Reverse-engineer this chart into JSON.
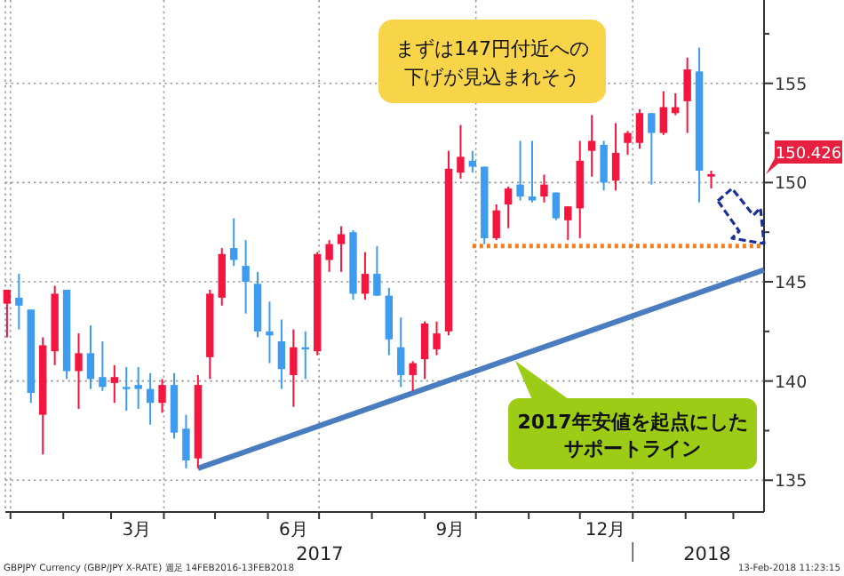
{
  "chart_data": {
    "type": "candlestick",
    "x": [
      "2016-12-30",
      "2017-01-06",
      "2017-01-13",
      "2017-01-20",
      "2017-01-27",
      "2017-02-03",
      "2017-02-10",
      "2017-02-17",
      "2017-02-24",
      "2017-03-03",
      "2017-03-10",
      "2017-03-17",
      "2017-03-24",
      "2017-03-31",
      "2017-04-07",
      "2017-04-14",
      "2017-04-21",
      "2017-04-28",
      "2017-05-05",
      "2017-05-12",
      "2017-05-19",
      "2017-05-26",
      "2017-06-02",
      "2017-06-09",
      "2017-06-16",
      "2017-06-23",
      "2017-06-30",
      "2017-07-07",
      "2017-07-14",
      "2017-07-21",
      "2017-07-28",
      "2017-08-04",
      "2017-08-11",
      "2017-08-18",
      "2017-08-25",
      "2017-09-01",
      "2017-09-08",
      "2017-09-15",
      "2017-09-22",
      "2017-09-29",
      "2017-10-06",
      "2017-10-13",
      "2017-10-20",
      "2017-10-27",
      "2017-11-03",
      "2017-11-10",
      "2017-11-17",
      "2017-11-24",
      "2017-12-01",
      "2017-12-08",
      "2017-12-15",
      "2017-12-22",
      "2017-12-29",
      "2018-01-05",
      "2018-01-12",
      "2018-01-19",
      "2018-01-26",
      "2018-02-02",
      "2018-02-09",
      "2018-02-16"
    ],
    "ohlc": [
      [
        143.9,
        144.6,
        142.2,
        144.6
      ],
      [
        144.2,
        145.4,
        142.6,
        143.8
      ],
      [
        143.6,
        143.6,
        138.9,
        139.4
      ],
      [
        138.3,
        142.2,
        136.3,
        141.8
      ],
      [
        141.5,
        144.8,
        140.8,
        144.4
      ],
      [
        144.6,
        144.6,
        140.1,
        140.5
      ],
      [
        140.5,
        142.4,
        138.6,
        141.4
      ],
      [
        141.4,
        142.8,
        139.6,
        140.1
      ],
      [
        140.2,
        142.0,
        139.5,
        139.7
      ],
      [
        139.9,
        140.8,
        138.9,
        140.2
      ],
      [
        139.7,
        140.7,
        138.5,
        139.6
      ],
      [
        139.8,
        140.7,
        138.6,
        139.6
      ],
      [
        139.6,
        140.4,
        137.8,
        138.9
      ],
      [
        138.9,
        140.1,
        138.4,
        139.8
      ],
      [
        139.8,
        140.4,
        137.1,
        137.4
      ],
      [
        137.6,
        138.3,
        135.6,
        136.0
      ],
      [
        136.1,
        140.3,
        135.6,
        139.8
      ],
      [
        141.2,
        144.6,
        140.1,
        144.4
      ],
      [
        144.2,
        146.7,
        143.8,
        146.4
      ],
      [
        146.7,
        148.2,
        145.8,
        146.1
      ],
      [
        145.8,
        147.1,
        143.4,
        145.0
      ],
      [
        144.9,
        145.5,
        142.2,
        142.5
      ],
      [
        142.5,
        144.0,
        140.9,
        142.3
      ],
      [
        142.0,
        143.1,
        139.6,
        140.6
      ],
      [
        140.3,
        142.6,
        138.7,
        141.7
      ],
      [
        141.7,
        142.5,
        140.1,
        141.6
      ],
      [
        141.5,
        146.5,
        141.3,
        146.4
      ],
      [
        146.1,
        147.1,
        145.5,
        146.9
      ],
      [
        146.9,
        147.8,
        145.5,
        147.4
      ],
      [
        147.5,
        147.6,
        144.1,
        144.4
      ],
      [
        144.4,
        146.5,
        144.1,
        145.4
      ],
      [
        145.4,
        146.8,
        144.3,
        144.3
      ],
      [
        144.3,
        144.7,
        141.3,
        142.1
      ],
      [
        141.7,
        143.2,
        139.7,
        140.3
      ],
      [
        140.3,
        141.0,
        139.5,
        140.9
      ],
      [
        141.1,
        143.0,
        140.1,
        142.9
      ],
      [
        141.6,
        143.0,
        141.3,
        142.4
      ],
      [
        142.5,
        151.6,
        142.3,
        150.7
      ],
      [
        150.5,
        152.9,
        150.2,
        151.3
      ],
      [
        151.1,
        151.6,
        150.5,
        150.8
      ],
      [
        150.8,
        150.8,
        146.9,
        147.2
      ],
      [
        147.2,
        148.9,
        147.1,
        148.6
      ],
      [
        148.9,
        149.8,
        147.7,
        149.7
      ],
      [
        149.9,
        152.1,
        149.1,
        149.3
      ],
      [
        149.3,
        152.1,
        149.0,
        149.1
      ],
      [
        149.3,
        150.4,
        149.0,
        149.9
      ],
      [
        149.5,
        149.5,
        148.1,
        148.2
      ],
      [
        148.1,
        148.8,
        147.1,
        148.8
      ],
      [
        148.7,
        152.1,
        147.2,
        151.1
      ],
      [
        151.6,
        153.4,
        150.3,
        152.1
      ],
      [
        151.9,
        152.1,
        149.6,
        150.0
      ],
      [
        150.1,
        153.0,
        149.6,
        151.5
      ],
      [
        152.0,
        152.6,
        151.4,
        152.5
      ],
      [
        152.0,
        153.7,
        151.7,
        153.5
      ],
      [
        153.5,
        153.5,
        149.9,
        152.5
      ],
      [
        152.5,
        154.6,
        152.4,
        153.8
      ],
      [
        153.5,
        154.5,
        153.4,
        153.8
      ],
      [
        154.1,
        156.3,
        152.5,
        155.7
      ],
      [
        155.6,
        156.8,
        149.0,
        150.6
      ],
      [
        150.3,
        150.6,
        149.7,
        150.426
      ]
    ],
    "colors": [
      "#f5163f",
      "#3d9cf0",
      "#3d9cf0",
      "#f5163f",
      "#f5163f",
      "#3d9cf0",
      "#f5163f",
      "#3d9cf0",
      "#3d9cf0",
      "#f5163f",
      "#3d9cf0",
      "#3d9cf0",
      "#3d9cf0",
      "#f5163f",
      "#3d9cf0",
      "#3d9cf0",
      "#f5163f",
      "#f5163f",
      "#f5163f",
      "#3d9cf0",
      "#3d9cf0",
      "#3d9cf0",
      "#3d9cf0",
      "#3d9cf0",
      "#f5163f",
      "#3d9cf0",
      "#f5163f",
      "#f5163f",
      "#f5163f",
      "#3d9cf0",
      "#f5163f",
      "#3d9cf0",
      "#3d9cf0",
      "#3d9cf0",
      "#f5163f",
      "#f5163f",
      "#f5163f",
      "#f5163f",
      "#f5163f",
      "#3d9cf0",
      "#3d9cf0",
      "#f5163f",
      "#f5163f",
      "#3d9cf0",
      "#3d9cf0",
      "#f5163f",
      "#3d9cf0",
      "#f5163f",
      "#f5163f",
      "#f5163f",
      "#3d9cf0",
      "#f5163f",
      "#f5163f",
      "#f5163f",
      "#3d9cf0",
      "#f5163f",
      "#f5163f",
      "#f5163f",
      "#3d9cf0",
      "#f5163f"
    ],
    "series": [
      {
        "type": "line",
        "color": "#4a7cc0",
        "x": [
          "2017-04-21",
          "2018-03-19"
        ],
        "values": [
          135.6,
          145.6
        ]
      },
      {
        "type": "line",
        "color": "#f07d1e",
        "line_style": "dotted",
        "x": [
          "2017-09-29",
          "2018-03-19"
        ],
        "values": [
          146.8,
          146.8
        ]
      }
    ],
    "xlim": [
      "2016-12-29",
      "2018-03-19"
    ],
    "xticks": [
      {
        "value": "2017-01-01",
        "label": null
      },
      {
        "value": "2017-02-01",
        "label": null
      },
      {
        "value": "2017-03-01",
        "label": null
      },
      {
        "value": "2017-03-16",
        "label": "3月"
      },
      {
        "value": "2017-04-01",
        "label": null
      },
      {
        "value": "2017-05-01",
        "label": null
      },
      {
        "value": "2017-06-01",
        "label": null
      },
      {
        "value": "2017-06-16",
        "label": "6月"
      },
      {
        "value": "2017-07-01",
        "label": null
      },
      {
        "value": "2017-08-01",
        "label": null
      },
      {
        "value": "2017-09-01",
        "label": null
      },
      {
        "value": "2017-09-16",
        "label": "9月"
      },
      {
        "value": "2017-10-01",
        "label": null
      },
      {
        "value": "2017-11-01",
        "label": null
      },
      {
        "value": "2017-12-01",
        "label": null
      },
      {
        "value": "2017-12-16",
        "label": "12月"
      },
      {
        "value": "2018-01-01",
        "label": null
      },
      {
        "value": "2018-02-01",
        "label": null
      },
      {
        "value": "2018-03-01",
        "label": null
      }
    ],
    "ylim": [
      133.4,
      159.2
    ],
    "yticks": [
      135,
      {
        "value": 137.5,
        "label": null
      },
      140,
      {
        "value": 142.5,
        "label": null
      },
      145,
      {
        "value": 147.5,
        "label": null
      },
      150,
      {
        "value": 152.5,
        "label": null
      },
      155,
      {
        "value": 157.5,
        "label": null
      }
    ],
    "grid": true,
    "annotations": [
      "まずは147円付近への下げが見込まれそう",
      "2017年安値を起点にしたサポートライン",
      "150.426",
      "2017",
      "2018",
      "GBPJPY Currency (GBP/JPY X-RATE) 週足 14FEB2016-13FEB2018",
      "13-Feb-2018 11:23:15"
    ]
  }
}
